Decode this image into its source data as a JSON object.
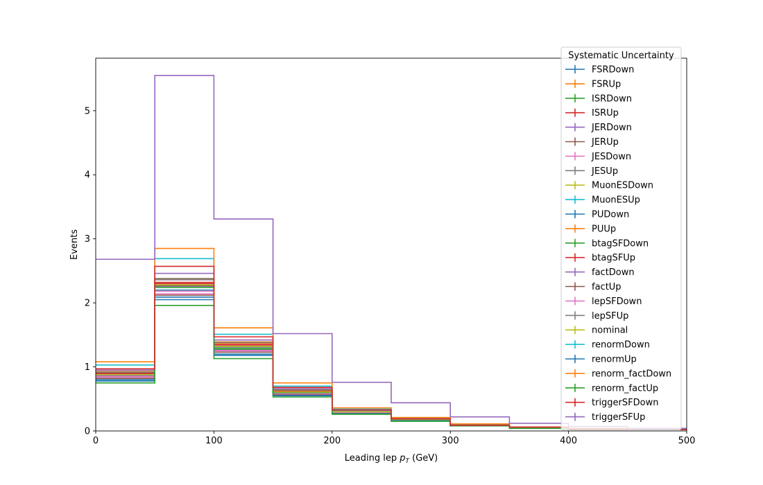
{
  "chart_data": {
    "type": "line",
    "drawstyle": "steps",
    "xlabel_main": "Leading lep ",
    "xlabel_math": "p",
    "xlabel_sub": "T",
    "xlabel_unit": " (GeV)",
    "ylabel": "Events",
    "xlim": [
      0,
      500
    ],
    "ylim": [
      0,
      5.82
    ],
    "xticks": [
      0,
      100,
      200,
      300,
      400,
      500
    ],
    "yticks": [
      0,
      1,
      2,
      3,
      4,
      5
    ],
    "grid": false,
    "legend_title": "Systematic Uncertainty",
    "legend_position": "upper-right",
    "bin_edges": [
      0,
      50,
      100,
      150,
      200,
      250,
      300,
      350,
      400,
      450,
      500
    ],
    "series": [
      {
        "name": "FSRDown",
        "color": "#1f77b4",
        "values": [
          0.86,
          2.2,
          1.27,
          0.6,
          0.29,
          0.17,
          0.08,
          0.05,
          0.03,
          0.02
        ]
      },
      {
        "name": "FSRUp",
        "color": "#ff7f0e",
        "values": [
          0.9,
          2.37,
          1.37,
          0.63,
          0.31,
          0.18,
          0.09,
          0.05,
          0.03,
          0.02
        ]
      },
      {
        "name": "ISRDown",
        "color": "#2ca02c",
        "values": [
          0.86,
          2.26,
          1.3,
          0.6,
          0.29,
          0.17,
          0.08,
          0.05,
          0.03,
          0.02
        ]
      },
      {
        "name": "ISRUp",
        "color": "#d62728",
        "values": [
          0.89,
          2.3,
          1.33,
          0.62,
          0.3,
          0.18,
          0.09,
          0.05,
          0.03,
          0.02
        ]
      },
      {
        "name": "JERDown",
        "color": "#9467bd",
        "values": [
          0.87,
          2.26,
          1.31,
          0.61,
          0.3,
          0.17,
          0.08,
          0.05,
          0.03,
          0.02
        ]
      },
      {
        "name": "JERUp",
        "color": "#8c564b",
        "values": [
          0.88,
          2.27,
          1.32,
          0.61,
          0.3,
          0.17,
          0.09,
          0.05,
          0.03,
          0.02
        ]
      },
      {
        "name": "JESDown",
        "color": "#e377c2",
        "values": [
          0.85,
          2.14,
          1.25,
          0.59,
          0.29,
          0.17,
          0.08,
          0.05,
          0.03,
          0.02
        ]
      },
      {
        "name": "JESUp",
        "color": "#7f7f7f",
        "values": [
          0.91,
          2.36,
          1.39,
          0.64,
          0.31,
          0.18,
          0.09,
          0.05,
          0.03,
          0.02
        ]
      },
      {
        "name": "MuonESDown",
        "color": "#bcbd22",
        "values": [
          0.88,
          2.28,
          1.32,
          0.61,
          0.3,
          0.17,
          0.09,
          0.05,
          0.03,
          0.02
        ]
      },
      {
        "name": "MuonESUp",
        "color": "#17becf",
        "values": [
          0.88,
          2.28,
          1.32,
          0.61,
          0.3,
          0.17,
          0.09,
          0.05,
          0.03,
          0.02
        ]
      },
      {
        "name": "PUDown",
        "color": "#1f77b4",
        "values": [
          0.8,
          2.09,
          1.2,
          0.56,
          0.27,
          0.16,
          0.08,
          0.05,
          0.03,
          0.02
        ]
      },
      {
        "name": "PUUp",
        "color": "#ff7f0e",
        "values": [
          0.93,
          2.38,
          1.39,
          0.65,
          0.32,
          0.19,
          0.09,
          0.05,
          0.03,
          0.02
        ]
      },
      {
        "name": "btagSFDown",
        "color": "#2ca02c",
        "values": [
          0.84,
          2.24,
          1.28,
          0.59,
          0.29,
          0.17,
          0.08,
          0.05,
          0.03,
          0.02
        ]
      },
      {
        "name": "btagSFUp",
        "color": "#d62728",
        "values": [
          0.9,
          2.32,
          1.35,
          0.62,
          0.31,
          0.18,
          0.09,
          0.05,
          0.03,
          0.02
        ]
      },
      {
        "name": "factDown",
        "color": "#9467bd",
        "values": [
          0.95,
          2.46,
          1.42,
          0.66,
          0.32,
          0.19,
          0.09,
          0.06,
          0.03,
          0.02
        ]
      },
      {
        "name": "factUp",
        "color": "#8c564b",
        "values": [
          0.82,
          2.12,
          1.23,
          0.57,
          0.28,
          0.16,
          0.08,
          0.05,
          0.03,
          0.02
        ]
      },
      {
        "name": "lepSFDown",
        "color": "#e377c2",
        "values": [
          0.84,
          2.18,
          1.26,
          0.58,
          0.29,
          0.17,
          0.08,
          0.05,
          0.03,
          0.02
        ]
      },
      {
        "name": "lepSFUp",
        "color": "#7f7f7f",
        "values": [
          0.92,
          2.38,
          1.38,
          0.64,
          0.31,
          0.18,
          0.09,
          0.05,
          0.03,
          0.02
        ]
      },
      {
        "name": "nominal",
        "color": "#bcbd22",
        "values": [
          0.88,
          2.28,
          1.32,
          0.61,
          0.3,
          0.17,
          0.09,
          0.05,
          0.03,
          0.02
        ]
      },
      {
        "name": "renormDown",
        "color": "#17becf",
        "values": [
          1.03,
          2.69,
          1.51,
          0.7,
          0.34,
          0.2,
          0.1,
          0.06,
          0.04,
          0.02
        ]
      },
      {
        "name": "renormUp",
        "color": "#1f77b4",
        "values": [
          0.78,
          2.05,
          1.18,
          0.55,
          0.27,
          0.16,
          0.08,
          0.05,
          0.03,
          0.02
        ]
      },
      {
        "name": "renorm_factDown",
        "color": "#ff7f0e",
        "values": [
          1.08,
          2.85,
          1.61,
          0.75,
          0.36,
          0.21,
          0.11,
          0.06,
          0.04,
          0.02
        ]
      },
      {
        "name": "renorm_factUp",
        "color": "#2ca02c",
        "values": [
          0.75,
          1.96,
          1.13,
          0.53,
          0.26,
          0.15,
          0.08,
          0.04,
          0.03,
          0.02
        ]
      },
      {
        "name": "triggerSFDown",
        "color": "#d62728",
        "values": [
          0.97,
          2.57,
          1.47,
          0.68,
          0.33,
          0.19,
          0.09,
          0.06,
          0.03,
          0.02
        ]
      },
      {
        "name": "triggerSFUp",
        "color": "#9467bd",
        "values": [
          2.68,
          5.55,
          3.31,
          1.52,
          0.76,
          0.44,
          0.22,
          0.12,
          0.07,
          0.04
        ]
      }
    ]
  }
}
